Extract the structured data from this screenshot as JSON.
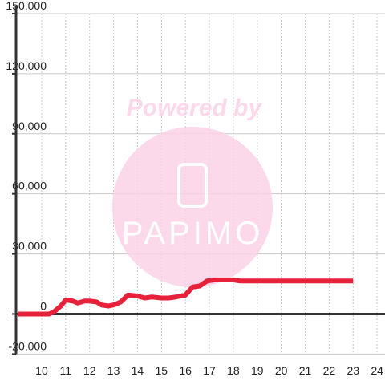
{
  "chart_data": {
    "type": "line",
    "x": [
      9,
      10,
      10.3,
      10.5,
      10.8,
      11,
      11.3,
      11.5,
      11.8,
      12,
      12.3,
      12.5,
      12.8,
      13,
      13.3,
      13.6,
      14,
      14.3,
      14.6,
      15,
      15.3,
      15.6,
      16,
      16.3,
      16.6,
      16.9,
      17.2,
      18,
      18.3,
      23
    ],
    "series": [
      {
        "color": "#e8213a",
        "values": [
          0,
          0,
          0,
          1000,
          4000,
          7000,
          6500,
          5500,
          6500,
          6500,
          6000,
          4500,
          4000,
          4500,
          6000,
          9500,
          9000,
          8000,
          8500,
          8000,
          8000,
          8500,
          9500,
          13500,
          14000,
          16500,
          17000,
          17000,
          16500,
          16500
        ]
      }
    ],
    "xlim": [
      8.93,
      24.33
    ],
    "xticks": [
      10,
      11,
      12,
      13,
      14,
      15,
      16,
      17,
      18,
      19,
      20,
      21,
      22,
      23,
      24
    ],
    "ylim": [
      -20000,
      150000
    ],
    "yticks": [
      {
        "value": -20000,
        "label": "-20,000"
      },
      0,
      {
        "value": 30000,
        "label": "30,000"
      },
      {
        "value": 60000,
        "label": "60,000"
      },
      {
        "value": 90000,
        "label": "90,000"
      },
      {
        "value": 120000,
        "label": "120,000"
      },
      {
        "value": 150000,
        "label": "150,000"
      }
    ],
    "grid": true
  },
  "watermark": {
    "line1": "Powered by",
    "line2": "PAPIMO"
  }
}
